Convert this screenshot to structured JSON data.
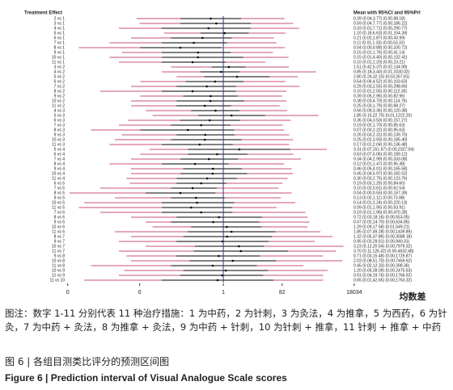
{
  "chart_data": {
    "type": "forest",
    "header_left": "Treatment Effect",
    "header_right": "Mean with 95%CI and 95%PrI",
    "xlabel": "均数差",
    "xscale": "log",
    "xlim": [
      1e-07,
      40000
    ],
    "xticks": [
      {
        "value": 8.7e-06,
        "label": "0"
      },
      {
        "value": 0.0019,
        "label": "0"
      },
      1,
      82,
      18034
    ],
    "reference_line": 1,
    "ref_color": "#1f3fa0",
    "pi_color": "#c8507a",
    "ci_color": "#000000",
    "rows": [
      {
        "label": "2 vs 1",
        "text": "0.39 (0.04,3.77) (0.00,98.18)",
        "mean": 0.39,
        "ci": [
          0.04,
          3.77
        ],
        "pi": [
          0.0015,
          98.18
        ]
      },
      {
        "label": "3 vs 1",
        "text": "0.59 (0.04,7.77) (0.00,186.22)",
        "mean": 0.59,
        "ci": [
          0.04,
          7.77
        ],
        "pi": [
          0.0019,
          186.22
        ]
      },
      {
        "label": "4 vs 1",
        "text": "0.33 (0.01,7.71) (0.00,290.77)",
        "mean": 0.33,
        "ci": [
          0.01,
          7.71
        ],
        "pi": [
          0.0004,
          290.77
        ]
      },
      {
        "label": "5 vs 1",
        "text": "1.10 (0.18,6.63) (0.01,104.39)",
        "mean": 1.1,
        "ci": [
          0.18,
          6.63
        ],
        "pi": [
          0.012,
          104.39
        ]
      },
      {
        "label": "6 vs 1",
        "text": "0.21 (0.02,1.87) (0.00,43.99)",
        "mean": 0.21,
        "ci": [
          0.02,
          1.87
        ],
        "pi": [
          0.001,
          43.99
        ]
      },
      {
        "label": "7 vs 1",
        "text": "0.11 (0.01,1.33) (0.00,53.32)",
        "mean": 0.11,
        "ci": [
          0.01,
          1.33
        ],
        "pi": [
          0.0002,
          53.32
        ]
      },
      {
        "label": "8 vs 1",
        "text": "0.04 (0.00,0.88) (0.00,100.72)",
        "mean": 0.04,
        "ci": [
          0.002,
          0.88
        ],
        "pi": [
          2e-05,
          100.72
        ]
      },
      {
        "label": "9 vs 1",
        "text": "0.15 (0.01,1.76) (0.00,41.14)",
        "mean": 0.15,
        "ci": [
          0.01,
          1.76
        ],
        "pi": [
          0.0005,
          41.14
        ]
      },
      {
        "label": "10 vs 1",
        "text": "0.15 (0.01,4.40) (0.00,132.41)",
        "mean": 0.15,
        "ci": [
          0.01,
          4.4
        ],
        "pi": [
          0.0002,
          132.41
        ]
      },
      {
        "label": "11 vs 1",
        "text": "0.10 (0.01,1.20) (0.00,23.21)",
        "mean": 0.1,
        "ci": [
          0.01,
          1.2
        ],
        "pi": [
          0.0004,
          23.21
        ]
      },
      {
        "label": "3 vs 2",
        "text": "1.51 (0.42,5.37) (0.02,134.99)",
        "mean": 1.51,
        "ci": [
          0.42,
          5.37
        ],
        "pi": [
          0.02,
          134.99
        ]
      },
      {
        "label": "4 vs 2",
        "text": "0.85 (0.18,3.40) (0.01,1030.02)",
        "mean": 0.85,
        "ci": [
          0.18,
          3.4
        ],
        "pi": [
          0.01,
          1030.02
        ]
      },
      {
        "label": "5 vs 2",
        "text": "2.80 (0.24,32.10) (0.03,267.81)",
        "mean": 2.8,
        "ci": [
          0.24,
          32.1
        ],
        "pi": [
          0.03,
          267.81
        ]
      },
      {
        "label": "6 vs 2",
        "text": "0.54 (0.06,4.52) (0.00,103.63)",
        "mean": 0.54,
        "ci": [
          0.06,
          4.52
        ],
        "pi": [
          0.002,
          103.63
        ]
      },
      {
        "label": "7 vs 2",
        "text": "0.29 (0.03,2.55) (0.00,298.66)",
        "mean": 0.29,
        "ci": [
          0.03,
          2.55
        ],
        "pi": [
          0.001,
          298.66
        ]
      },
      {
        "label": "8 vs 2",
        "text": "0.10 (0.01,2.55) (0.00,112.35)",
        "mean": 0.1,
        "ci": [
          0.01,
          2.55
        ],
        "pi": [
          0.0001,
          112.35
        ]
      },
      {
        "label": "9 vs 2",
        "text": "0.39 (0.05,2.96) (0.00,82.96)",
        "mean": 0.39,
        "ci": [
          0.05,
          2.96
        ],
        "pi": [
          0.002,
          82.96
        ]
      },
      {
        "label": "10 vs 2",
        "text": "0.38 (0.03,4.70) (0.00,114.76)",
        "mean": 0.38,
        "ci": [
          0.03,
          4.7
        ],
        "pi": [
          0.001,
          114.76
        ]
      },
      {
        "label": "11 vs 2",
        "text": "0.25 (0.03,1.79) (0.00,68.27)",
        "mean": 0.25,
        "ci": [
          0.03,
          1.79
        ],
        "pi": [
          0.001,
          68.27
        ]
      },
      {
        "label": "4 vs 3",
        "text": "0.56 (0.09,3.36) (0.00,120.38)",
        "mean": 0.56,
        "ci": [
          0.09,
          3.36
        ],
        "pi": [
          0.003,
          120.38
        ]
      },
      {
        "label": "5 vs 3",
        "text": "1.85 (0.15,22.70) (0.01,1222.20)",
        "mean": 1.85,
        "ci": [
          0.15,
          22.7
        ],
        "pi": [
          0.005,
          1222.2
        ]
      },
      {
        "label": "6 vs 3",
        "text": "0.36 (0.04,3.50) (0.00,157.27)",
        "mean": 0.36,
        "ci": [
          0.04,
          3.5
        ],
        "pi": [
          0.0008,
          157.27
        ]
      },
      {
        "label": "7 vs 3",
        "text": "0.19 (0.02,1.70) (0.00,85.63)",
        "mean": 0.19,
        "ci": [
          0.02,
          1.7
        ],
        "pi": [
          0.0004,
          85.63
        ]
      },
      {
        "label": "8 vs 3",
        "text": "0.07 (0.00,2.22) (0.00,95.63)",
        "mean": 0.07,
        "ci": [
          0.002,
          2.22
        ],
        "pi": [
          5e-05,
          95.63
        ]
      },
      {
        "label": "9 vs 3",
        "text": "0.26 (0.03,2.31) (0.00,139.70)",
        "mean": 0.26,
        "ci": [
          0.03,
          2.31
        ],
        "pi": [
          0.0005,
          139.7
        ]
      },
      {
        "label": "10 vs 3",
        "text": "0.25 (0.02,3.93) (0.00,185.40)",
        "mean": 0.25,
        "ci": [
          0.02,
          3.93
        ],
        "pi": [
          0.0003,
          185.4
        ]
      },
      {
        "label": "11 vs 3",
        "text": "0.17 (0.01,2.04) (0.00,136.48)",
        "mean": 0.17,
        "ci": [
          0.01,
          2.04
        ],
        "pi": [
          0.0002,
          136.48
        ]
      },
      {
        "label": "5 vs 4",
        "text": "3.31 (0.07,151.67) (0.00,2327.04)",
        "mean": 3.31,
        "ci": [
          0.07,
          151.67
        ],
        "pi": [
          0.004,
          2327.04
        ]
      },
      {
        "label": "6 vs 4",
        "text": "0.63 (0.07,6.06) (0.00,189.12)",
        "mean": 0.63,
        "ci": [
          0.07,
          6.06
        ],
        "pi": [
          0.002,
          189.12
        ]
      },
      {
        "label": "7 vs 4",
        "text": "0.34 (0.04,2.99) (0.00,333.08)",
        "mean": 0.34,
        "ci": [
          0.04,
          2.99
        ],
        "pi": [
          0.001,
          333.08
        ]
      },
      {
        "label": "8 vs 4",
        "text": "0.12 (0.01,1.47) (0.00,95.38)",
        "mean": 0.12,
        "ci": [
          0.01,
          1.47
        ],
        "pi": [
          0.0002,
          95.38
        ]
      },
      {
        "label": "9 vs 4",
        "text": "0.46 (0.05,4.01) (0.00,165.58)",
        "mean": 0.46,
        "ci": [
          0.05,
          4.01
        ],
        "pi": [
          0.001,
          165.58
        ]
      },
      {
        "label": "10 vs 4",
        "text": "0.45 (0.04,5.97) (0.00,182.52)",
        "mean": 0.45,
        "ci": [
          0.04,
          5.97
        ],
        "pi": [
          0.001,
          182.52
        ]
      },
      {
        "label": "11 vs 4",
        "text": "0.30 (0.03,2.75) (0.00,123.76)",
        "mean": 0.3,
        "ci": [
          0.03,
          2.75
        ],
        "pi": [
          0.0007,
          123.76
        ]
      },
      {
        "label": "6 vs 5",
        "text": "0.19 (0.03,1.25) (0.00,84.60)",
        "mean": 0.19,
        "ci": [
          0.03,
          1.25
        ],
        "pi": [
          0.0009,
          84.6
        ]
      },
      {
        "label": "7 vs 5",
        "text": "0.10 (0.02,0.61) (0.00,62.54)",
        "mean": 0.1,
        "ci": [
          0.02,
          0.61
        ],
        "pi": [
          0.0001,
          62.54
        ]
      },
      {
        "label": "8 vs 5",
        "text": "0.04 (0.00,0.55) (0.00,167.39)",
        "mean": 0.04,
        "ci": [
          0.003,
          0.55
        ],
        "pi": [
          1e-05,
          167.39
        ]
      },
      {
        "label": "9 vs 5",
        "text": "0.13 (0.02,1.11) (0.00,73.98)",
        "mean": 0.13,
        "ci": [
          0.02,
          1.11
        ],
        "pi": [
          0.0003,
          73.98
        ]
      },
      {
        "label": "10 vs 5",
        "text": "0.14 (0.01,2.24) (0.00,220.13)",
        "mean": 0.14,
        "ci": [
          0.01,
          2.24
        ],
        "pi": [
          3e-05,
          220.13
        ]
      },
      {
        "label": "11 vs 5",
        "text": "0.09 (0.01,1.95) (0.00,53.91)",
        "mean": 0.09,
        "ci": [
          0.01,
          1.95
        ],
        "pi": [
          2e-05,
          53.91
        ]
      },
      {
        "label": "7 vs 6",
        "text": "0.19 (0.01,1.96) (0.00,470.28)",
        "mean": 0.19,
        "ci": [
          0.01,
          1.96
        ],
        "pi": [
          0.0001,
          470.28
        ]
      },
      {
        "label": "8 vs 6",
        "text": "0.72 (0.03,18.16) (0.00,553.05)",
        "mean": 0.72,
        "ci": [
          0.03,
          18.16
        ],
        "pi": [
          0.001,
          553.05
        ]
      },
      {
        "label": "9 vs 6",
        "text": "0.47 (0.02,14.70) (0.00,634.85)",
        "mean": 0.47,
        "ci": [
          0.02,
          14.7
        ],
        "pi": [
          0.003,
          634.85
        ]
      },
      {
        "label": "10 vs 6",
        "text": "1.29 (0.09,17.58) (0.01,549.21)",
        "mean": 1.29,
        "ci": [
          0.09,
          17.58
        ],
        "pi": [
          0.005,
          549.21
        ]
      },
      {
        "label": "11 vs 6",
        "text": "1.85 (0.07,49.28) (0.00,1439.89)",
        "mean": 1.85,
        "ci": [
          0.07,
          49.28
        ],
        "pi": [
          0.0003,
          1439.89
        ]
      },
      {
        "label": "8 vs 7",
        "text": "1.32 (0.05,37.86) (0.00,3588.18)",
        "mean": 1.32,
        "ci": [
          0.05,
          37.86
        ],
        "pi": [
          0.001,
          3588.18
        ]
      },
      {
        "label": "9 vs 7",
        "text": "0.95 (0.03,29.61) (0.00,940.31)",
        "mean": 0.95,
        "ci": [
          0.03,
          29.61
        ],
        "pi": [
          0.0004,
          940.31
        ]
      },
      {
        "label": "10 vs 7",
        "text": "3.23 (0.12,20.54) (0.00,7979.32)",
        "mean": 3.23,
        "ci": [
          0.12,
          20.54
        ],
        "pi": [
          0.003,
          7979.32
        ]
      },
      {
        "label": "11 vs 7",
        "text": "3.70 (0.11,126.32) (0.00,4632.48)",
        "mean": 3.7,
        "ci": [
          0.11,
          126.32
        ],
        "pi": [
          0.0004,
          4632.48
        ]
      },
      {
        "label": "9 vs 8",
        "text": "0.71 (0.03,15.48) (0.00,1729.87)",
        "mean": 0.71,
        "ci": [
          0.03,
          15.48
        ],
        "pi": [
          0.0007,
          1729.87
        ]
      },
      {
        "label": "10 vs 8",
        "text": "2.03 (0.08,51.70) (0.00,7459.62)",
        "mean": 2.03,
        "ci": [
          0.08,
          51.7
        ],
        "pi": [
          0.001,
          7459.62
        ]
      },
      {
        "label": "11 vs 8",
        "text": "0.45 (0.02,12.33) (0.00,398.36)",
        "mean": 0.45,
        "ci": [
          0.02,
          12.33
        ],
        "pi": [
          5e-05,
          398.36
        ]
      },
      {
        "label": "10 vs 9",
        "text": "1.20 (0.05,28.09) (0.00,2475.63)",
        "mean": 1.2,
        "ci": [
          0.05,
          28.09
        ],
        "pi": [
          0.0006,
          2475.63
        ]
      },
      {
        "label": "11 vs 9",
        "text": "0.91 (0.04,19.76) (0.00,1766.92)",
        "mean": 0.91,
        "ci": [
          0.04,
          19.76
        ],
        "pi": [
          0.0004,
          1766.92
        ]
      },
      {
        "label": "11 vs 10",
        "text": "0.65 (0.01,42.65) (0.00,1763.32)",
        "mean": 0.65,
        "ci": [
          0.01,
          42.65
        ],
        "pi": [
          3e-05,
          1763.32
        ]
      }
    ]
  },
  "caption": {
    "note": "图注：数字 1-11 分别代表 11 种治疗措施：1 为中药，2 为针刺，3 为灸法，4 为推拿，5 为西药，6 为针灸，7 为中药 + 灸法，8 为推拿 + 灸法，9 为中药 + 针刺，10 为针刺 + 推拿，11 针刺 + 推拿 + 中药",
    "title_cn": "图 6  |  各组目测类比评分的预测区间图",
    "title_en": "Figure 6  |  Prediction interval of Visual Analogue Scale scores"
  }
}
